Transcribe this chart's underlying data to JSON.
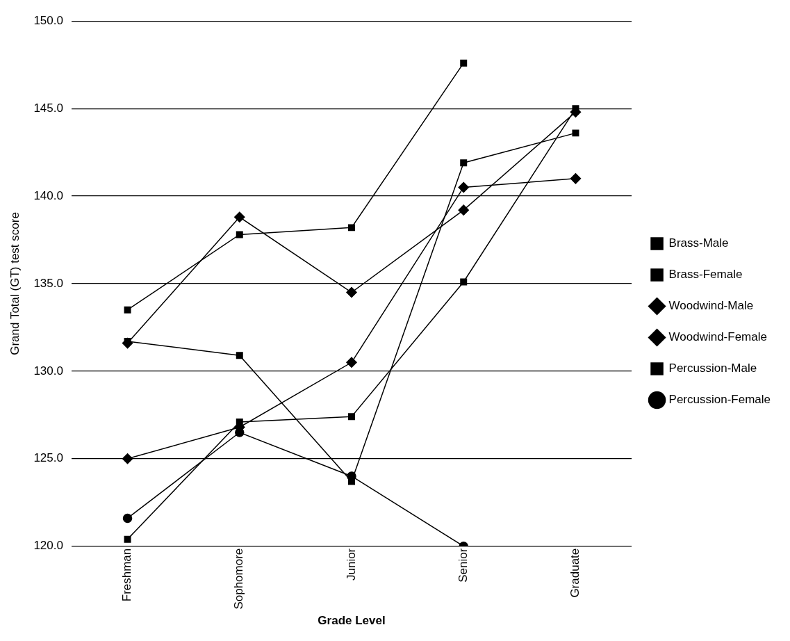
{
  "chart_data": {
    "type": "line",
    "xlabel": "Grade Level",
    "ylabel": "Grand Total (GT) test score",
    "categories": [
      "Freshman",
      "Sophomore",
      "Junior",
      "Senior",
      "Graduate"
    ],
    "series": [
      {
        "name": "Brass-Male",
        "color": "#000000",
        "marker": "square",
        "values": [
          131.7,
          130.9,
          123.7,
          141.9,
          143.6
        ]
      },
      {
        "name": "Brass-Female",
        "color": "#000000",
        "marker": "square",
        "values": [
          133.5,
          137.8,
          138.2,
          147.6,
          null
        ]
      },
      {
        "name": "Woodwind-Male",
        "color": "#000000",
        "marker": "diamond",
        "values": [
          131.6,
          138.8,
          134.5,
          139.2,
          144.8
        ]
      },
      {
        "name": "Woodwind-Female",
        "color": "#000000",
        "marker": "diamond",
        "values": [
          125.0,
          126.8,
          130.5,
          140.5,
          141.0
        ]
      },
      {
        "name": "Percussion-Male",
        "color": "#000000",
        "marker": "square",
        "values": [
          120.4,
          127.1,
          127.4,
          135.1,
          145.0
        ]
      },
      {
        "name": "Percussion-Female",
        "color": "#000000",
        "marker": "circle",
        "values": [
          121.6,
          126.5,
          124.0,
          120.0,
          null
        ]
      }
    ],
    "ylim": [
      120,
      150
    ],
    "yticks": [
      {
        "value": 120,
        "label": "120.0"
      },
      {
        "value": 125,
        "label": "125.0"
      },
      {
        "value": 130,
        "label": "130.0"
      },
      {
        "value": 135,
        "label": "135.0"
      },
      {
        "value": 140,
        "label": "140.0"
      },
      {
        "value": 145,
        "label": "145.0"
      },
      {
        "value": 150,
        "label": "150.0"
      }
    ],
    "grid": "y",
    "legend": "right"
  }
}
